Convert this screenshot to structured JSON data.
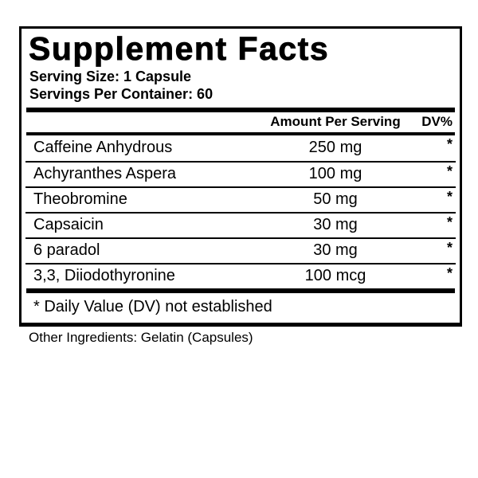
{
  "label": {
    "title": "Supplement Facts",
    "serving_size": "Serving Size: 1 Capsule",
    "servings_per_container": "Servings Per Container: 60",
    "columns": {
      "amount_header": "Amount Per Serving",
      "dv_header": "DV%"
    },
    "rows": [
      {
        "name": "Caffeine Anhydrous",
        "amount": "250 mg",
        "dv": "*"
      },
      {
        "name": "Achyranthes Aspera",
        "amount": "100 mg",
        "dv": "*"
      },
      {
        "name": "Theobromine",
        "amount": "50 mg",
        "dv": "*"
      },
      {
        "name": "Capsaicin",
        "amount": "30 mg",
        "dv": "*"
      },
      {
        "name": "6 paradol",
        "amount": "30 mg",
        "dv": "*"
      },
      {
        "name": "3,3, Diiodothyronine",
        "amount": "100 mcg",
        "dv": "*"
      }
    ],
    "footnote": "* Daily Value (DV) not established",
    "other_ingredients": "Other Ingredients: Gelatin (Capsules)"
  },
  "colors": {
    "ink": "#000000",
    "background": "#ffffff"
  }
}
